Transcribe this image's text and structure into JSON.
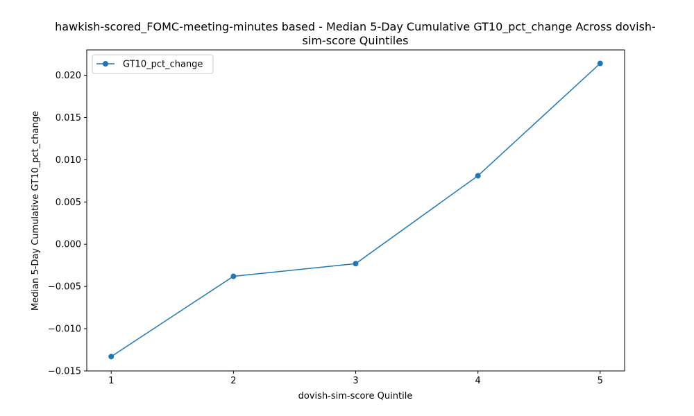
{
  "chart_data": {
    "type": "line",
    "title_lines": [
      "hawkish-scored_FOMC-meeting-minutes based - Median 5-Day Cumulative GT10_pct_change Across dovish-",
      "sim-score Quintiles"
    ],
    "xlabel": "dovish-sim-score Quintile",
    "ylabel": "Median 5-Day Cumulative GT10_pct_change",
    "x": [
      1,
      2,
      3,
      4,
      5
    ],
    "x_tick_labels": [
      "1",
      "2",
      "3",
      "4",
      "5"
    ],
    "xlim": [
      0.8,
      5.2
    ],
    "ylim": [
      -0.015,
      0.023
    ],
    "y_ticks": [
      -0.015,
      -0.01,
      -0.005,
      0.0,
      0.005,
      0.01,
      0.015,
      0.02
    ],
    "y_tick_labels": [
      "−0.015",
      "−0.010",
      "−0.005",
      "0.000",
      "0.005",
      "0.010",
      "0.015",
      "0.020"
    ],
    "series": [
      {
        "name": "GT10_pct_change",
        "values": [
          -0.0133,
          -0.0038,
          -0.0023,
          0.0081,
          0.0214
        ],
        "color": "#1f77b4",
        "marker": "circle"
      }
    ],
    "legend_position": "upper-left",
    "grid": false
  }
}
